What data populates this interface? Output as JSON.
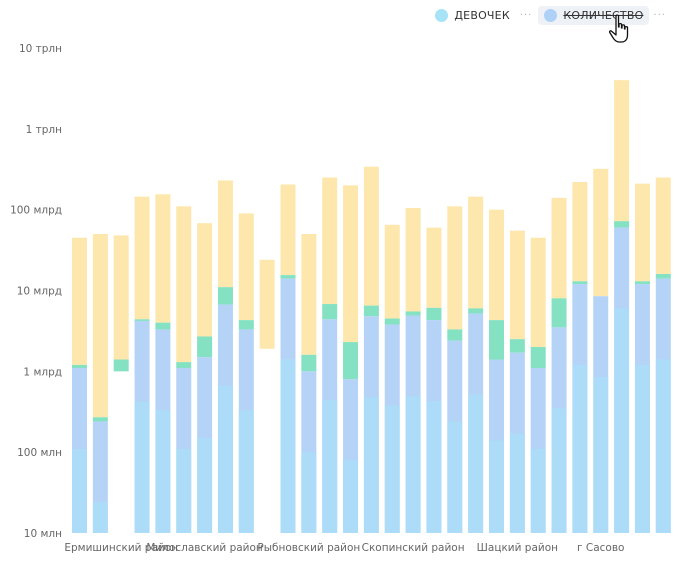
{
  "legend": {
    "items": [
      {
        "label": "ДЕВОЧЕК",
        "color": "#a6e3f7",
        "struck": false
      },
      {
        "label": "КОЛИЧЕСТВО",
        "color": "#b0d1f7",
        "struck": true
      }
    ],
    "more_icon": "ellipsis-icon"
  },
  "cursor_icon": "hand-pointer-icon",
  "colors": {
    "girls": "#a6e3f7",
    "count": "#b0d1f7",
    "teal": "#6fdcb7",
    "yellow": "#fde6a8",
    "gap": "#e6f3f1"
  },
  "chart_data": {
    "type": "bar",
    "stacked": true,
    "y_scale": "log",
    "ylim": [
      10000000,
      10000000000000
    ],
    "y_ticks": [
      {
        "value": 10000000,
        "label": "10 млн"
      },
      {
        "value": 100000000,
        "label": "100 млн"
      },
      {
        "value": 1000000000,
        "label": "1 млрд"
      },
      {
        "value": 10000000000,
        "label": "10 млрд"
      },
      {
        "value": 100000000000,
        "label": "100 млрд"
      },
      {
        "value": 1000000000000,
        "label": "1 трлн"
      },
      {
        "value": 10000000000000,
        "label": "10 трлн"
      }
    ],
    "x_tick_labels": [
      {
        "index": 2,
        "label": "Ермишинский район"
      },
      {
        "index": 6,
        "label": "Милославский район"
      },
      {
        "index": 11,
        "label": "Рыбновский район"
      },
      {
        "index": 16,
        "label": "Скопинский район"
      },
      {
        "index": 21,
        "label": "Шацкий район"
      },
      {
        "index": 25,
        "label": "г Сасово"
      }
    ],
    "grid": false,
    "legend_position": "top-right",
    "bars": [
      {
        "blue": 1100000000,
        "teal": 1200000000,
        "yellow": 45000000000
      },
      {
        "blue": 240000000,
        "teal": 270000000,
        "yellow": 50000000000
      },
      {
        "blue": null,
        "teal": 1400000000,
        "yellow": 48000000000,
        "blue_floor": 1000000000
      },
      {
        "blue": 4200000000,
        "teal": 4400000000,
        "yellow": 145000000000
      },
      {
        "blue": 3300000000,
        "teal": 4000000000,
        "yellow": 155000000000
      },
      {
        "blue": 1100000000,
        "teal": 1300000000,
        "yellow": 110000000000
      },
      {
        "blue": 1500000000,
        "teal": 2700000000,
        "yellow": 68000000000
      },
      {
        "blue": 6700000000,
        "teal": 11000000000,
        "yellow": 230000000000
      },
      {
        "blue": 3300000000,
        "teal": 4300000000,
        "yellow": 90000000000
      },
      {
        "blue": null,
        "teal": null,
        "yellow": 24000000000,
        "yellow_floor": 1900000000
      },
      {
        "blue": 14000000000,
        "teal": 15500000000,
        "yellow": 205000000000
      },
      {
        "blue": 1000000000,
        "teal": 1600000000,
        "yellow": 50000000000
      },
      {
        "blue": 4400000000,
        "teal": 6800000000,
        "yellow": 250000000000
      },
      {
        "blue": 800000000,
        "teal": 2300000000,
        "yellow": 200000000000
      },
      {
        "blue": 4800000000,
        "teal": 6500000000,
        "yellow": 340000000000
      },
      {
        "blue": 3800000000,
        "teal": 4500000000,
        "yellow": 65000000000
      },
      {
        "blue": 4900000000,
        "teal": 5500000000,
        "yellow": 105000000000
      },
      {
        "blue": 4300000000,
        "teal": 6100000000,
        "yellow": 60000000000
      },
      {
        "blue": 2400000000,
        "teal": 3300000000,
        "yellow": 110000000000
      },
      {
        "blue": 5200000000,
        "teal": 6000000000,
        "yellow": 145000000000
      },
      {
        "blue": 1400000000,
        "teal": 4300000000,
        "yellow": 100000000000
      },
      {
        "blue": 1700000000,
        "teal": 2500000000,
        "yellow": 55000000000
      },
      {
        "blue": 1100000000,
        "teal": 2000000000,
        "yellow": 45000000000
      },
      {
        "blue": 3500000000,
        "teal": 8000000000,
        "yellow": 140000000000
      },
      {
        "blue": 12000000000,
        "teal": 13000000000,
        "yellow": 220000000000
      },
      {
        "blue": 8500000000,
        "teal": 8500000000,
        "yellow": 320000000000
      },
      {
        "blue": 60000000000,
        "teal": 72000000000,
        "yellow": 4000000000000
      },
      {
        "blue": 12000000000,
        "teal": 13000000000,
        "yellow": 210000000000
      },
      {
        "blue": 14000000000,
        "teal": 16000000000,
        "yellow": 250000000000
      }
    ]
  }
}
